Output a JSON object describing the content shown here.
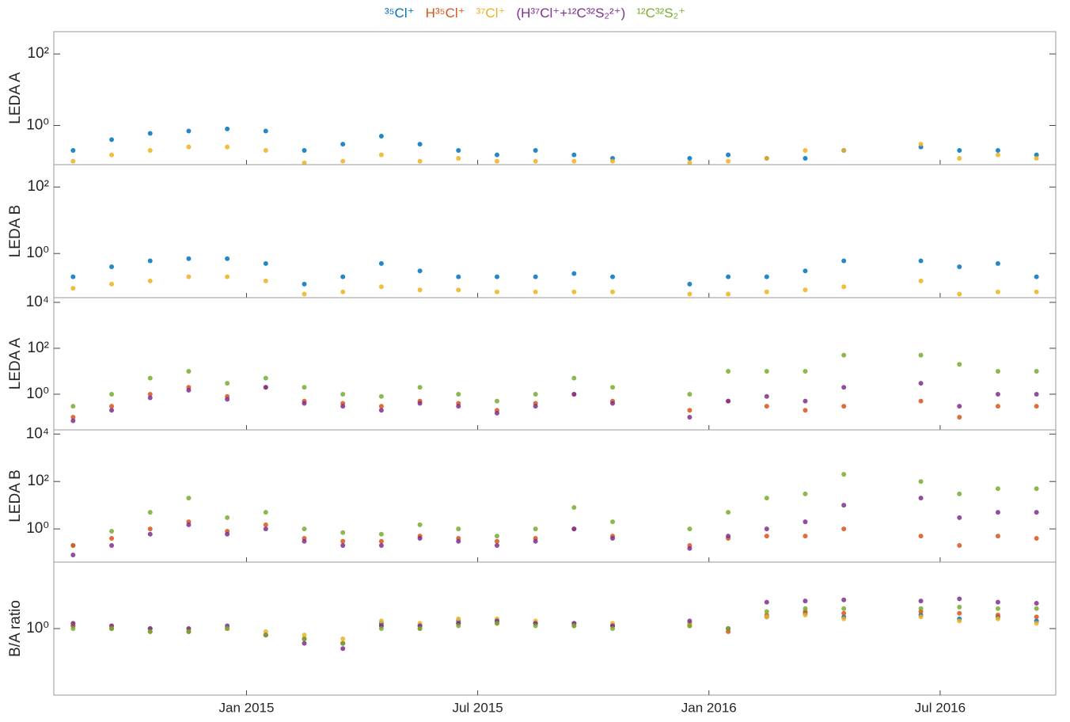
{
  "chart_data": [
    {
      "type": "scatter",
      "ylabel": "LEDA A",
      "log_y": true,
      "ylim": [
        0.08,
        420
      ],
      "xlim": [
        "2014-08",
        "2016-10"
      ],
      "yticks": [
        {
          "value": 1,
          "label": "10⁰"
        },
        {
          "value": 100,
          "label": "10²"
        }
      ],
      "x": [
        "2014-08",
        "2014-09",
        "2014-10",
        "2014-11",
        "2014-12",
        "2015-01",
        "2015-02",
        "2015-03",
        "2015-04",
        "2015-05",
        "2015-06",
        "2015-07",
        "2015-08",
        "2015-09",
        "2015-10",
        "2015-11",
        "2015-12",
        "2016-01",
        "2016-02",
        "2016-03",
        "2016-04",
        "2016-05",
        "2016-06",
        "2016-07",
        "2016-08",
        "2016-09"
      ],
      "series": [
        {
          "name": "³⁵Cl⁺",
          "color": "#0072bd",
          "values": [
            0.2,
            0.4,
            0.6,
            0.7,
            0.8,
            0.7,
            0.2,
            0.3,
            0.5,
            0.3,
            0.2,
            0.15,
            0.2,
            0.15,
            0.12,
            null,
            0.12,
            0.15,
            0.12,
            0.12,
            0.2,
            null,
            0.25,
            0.2,
            0.2,
            0.15
          ]
        },
        {
          "name": "³⁷Cl⁺",
          "color": "#edb120",
          "values": [
            0.1,
            0.15,
            0.2,
            0.25,
            0.25,
            0.2,
            0.09,
            0.1,
            0.15,
            0.1,
            0.12,
            0.1,
            0.1,
            0.1,
            0.1,
            null,
            0.09,
            0.1,
            0.12,
            0.2,
            0.2,
            null,
            0.3,
            0.12,
            0.15,
            0.12
          ]
        }
      ]
    },
    {
      "type": "scatter",
      "ylabel": "LEDA B",
      "log_y": true,
      "ylim": [
        0.047,
        470
      ],
      "xlim": [
        "2014-08",
        "2016-10"
      ],
      "yticks": [
        {
          "value": 1,
          "label": "10⁰"
        },
        {
          "value": 100,
          "label": "10²"
        }
      ],
      "x": [
        "2014-08",
        "2014-09",
        "2014-10",
        "2014-11",
        "2014-12",
        "2015-01",
        "2015-02",
        "2015-03",
        "2015-04",
        "2015-05",
        "2015-06",
        "2015-07",
        "2015-08",
        "2015-09",
        "2015-10",
        "2015-11",
        "2015-12",
        "2016-01",
        "2016-02",
        "2016-03",
        "2016-04",
        "2016-05",
        "2016-06",
        "2016-07",
        "2016-08",
        "2016-09"
      ],
      "series": [
        {
          "name": "³⁵Cl⁺",
          "color": "#0072bd",
          "values": [
            0.2,
            0.4,
            0.6,
            0.7,
            0.7,
            0.5,
            0.12,
            0.2,
            0.5,
            0.3,
            0.2,
            0.2,
            0.2,
            0.25,
            0.2,
            null,
            0.12,
            0.2,
            0.2,
            0.3,
            0.6,
            null,
            0.6,
            0.4,
            0.5,
            0.2
          ]
        },
        {
          "name": "³⁷Cl⁺",
          "color": "#edb120",
          "values": [
            0.09,
            0.12,
            0.15,
            0.2,
            0.2,
            0.15,
            0.06,
            0.07,
            0.1,
            0.08,
            0.08,
            0.07,
            0.07,
            0.07,
            0.07,
            null,
            0.06,
            0.06,
            0.07,
            0.08,
            0.1,
            null,
            0.15,
            0.06,
            0.07,
            0.07
          ]
        }
      ]
    },
    {
      "type": "scatter",
      "ylabel": "LEDA A",
      "log_y": true,
      "ylim": [
        0.028,
        16000
      ],
      "xlim": [
        "2014-08",
        "2016-10"
      ],
      "yticks": [
        {
          "value": 1,
          "label": "10⁰"
        },
        {
          "value": 100,
          "label": "10²"
        },
        {
          "value": 10000,
          "label": "10⁴"
        }
      ],
      "x": [
        "2014-08",
        "2014-09",
        "2014-10",
        "2014-11",
        "2014-12",
        "2015-01",
        "2015-02",
        "2015-03",
        "2015-04",
        "2015-05",
        "2015-06",
        "2015-07",
        "2015-08",
        "2015-09",
        "2015-10",
        "2015-11",
        "2015-12",
        "2016-01",
        "2016-02",
        "2016-03",
        "2016-04",
        "2016-05",
        "2016-06",
        "2016-07",
        "2016-08",
        "2016-09"
      ],
      "series": [
        {
          "name": "¹²C³²S₂⁺",
          "color": "#77ac30",
          "values": [
            0.3,
            1,
            5,
            10,
            3,
            5,
            2,
            1,
            0.8,
            2,
            1,
            0.5,
            1,
            5,
            2,
            null,
            1,
            10,
            10,
            10,
            50,
            null,
            50,
            20,
            10,
            10
          ]
        },
        {
          "name": "H³⁵Cl⁺",
          "color": "#d95319",
          "values": [
            0.1,
            0.3,
            1,
            2,
            0.8,
            2,
            0.5,
            0.4,
            0.3,
            0.5,
            0.4,
            0.2,
            0.4,
            1,
            0.5,
            null,
            0.2,
            0.5,
            0.3,
            0.2,
            0.3,
            null,
            0.5,
            0.1,
            0.3,
            0.3
          ]
        },
        {
          "name": "(H³⁷Cl⁺+¹²C³²S₂²⁺)",
          "color": "#7e2f8e",
          "values": [
            0.07,
            0.2,
            0.7,
            1.5,
            0.6,
            2,
            0.4,
            0.3,
            0.2,
            0.4,
            0.3,
            0.15,
            0.3,
            1,
            0.4,
            null,
            0.1,
            0.5,
            0.8,
            0.5,
            2,
            null,
            3,
            0.3,
            1,
            1
          ]
        }
      ]
    },
    {
      "type": "scatter",
      "ylabel": "LEDA B",
      "log_y": true,
      "ylim": [
        0.04,
        15000
      ],
      "xlim": [
        "2014-08",
        "2016-10"
      ],
      "yticks": [
        {
          "value": 1,
          "label": "10⁰"
        },
        {
          "value": 100,
          "label": "10²"
        },
        {
          "value": 10000,
          "label": "10⁴"
        }
      ],
      "x": [
        "2014-08",
        "2014-09",
        "2014-10",
        "2014-11",
        "2014-12",
        "2015-01",
        "2015-02",
        "2015-03",
        "2015-04",
        "2015-05",
        "2015-06",
        "2015-07",
        "2015-08",
        "2015-09",
        "2015-10",
        "2015-11",
        "2015-12",
        "2016-01",
        "2016-02",
        "2016-03",
        "2016-04",
        "2016-05",
        "2016-06",
        "2016-07",
        "2016-08",
        "2016-09"
      ],
      "series": [
        {
          "name": "¹²C³²S₂⁺",
          "color": "#77ac30",
          "values": [
            0.2,
            0.8,
            5,
            20,
            3,
            5,
            1,
            0.7,
            0.6,
            1.5,
            1,
            0.5,
            1,
            8,
            2,
            null,
            1,
            5,
            20,
            30,
            200,
            null,
            100,
            30,
            50,
            50
          ]
        },
        {
          "name": "H³⁵Cl⁺",
          "color": "#d95319",
          "values": [
            0.2,
            0.4,
            1,
            2,
            0.8,
            1.5,
            0.4,
            0.3,
            0.3,
            0.5,
            0.4,
            0.3,
            0.4,
            1,
            0.5,
            null,
            0.2,
            0.4,
            0.5,
            0.5,
            1,
            null,
            0.5,
            0.2,
            0.5,
            0.4
          ]
        },
        {
          "name": "(H³⁷Cl⁺+¹²C³²S₂²⁺)",
          "color": "#7e2f8e",
          "values": [
            0.08,
            0.2,
            0.6,
            1.5,
            0.6,
            1,
            0.3,
            0.2,
            0.2,
            0.4,
            0.3,
            0.2,
            0.3,
            1,
            0.4,
            null,
            0.15,
            0.5,
            1,
            2,
            10,
            null,
            20,
            3,
            5,
            5
          ]
        }
      ]
    },
    {
      "type": "scatter",
      "ylabel": "B/A ratio",
      "log_y": true,
      "ylim": [
        0.1,
        10
      ],
      "xlim": [
        "2014-08",
        "2016-10"
      ],
      "yticks": [
        {
          "value": 1,
          "label": "10⁰"
        }
      ],
      "xticks": [
        {
          "value": "2015-01",
          "label": "Jan 2015"
        },
        {
          "value": "2015-07",
          "label": "Jul 2015"
        },
        {
          "value": "2016-01",
          "label": "Jan 2016"
        },
        {
          "value": "2016-07",
          "label": "Jul 2016"
        }
      ],
      "x": [
        "2014-08",
        "2014-09",
        "2014-10",
        "2014-11",
        "2014-12",
        "2015-01",
        "2015-02",
        "2015-03",
        "2015-04",
        "2015-05",
        "2015-06",
        "2015-07",
        "2015-08",
        "2015-09",
        "2015-10",
        "2015-11",
        "2015-12",
        "2016-01",
        "2016-02",
        "2016-03",
        "2016-04",
        "2016-05",
        "2016-06",
        "2016-07",
        "2016-08",
        "2016-09"
      ],
      "series": [
        {
          "name": "³⁵Cl⁺",
          "color": "#0072bd",
          "values": [
            1.1,
            1,
            1,
            0.9,
            1,
            0.8,
            0.7,
            0.6,
            1.2,
            1.1,
            1.3,
            1.3,
            1.2,
            1.2,
            1.1,
            null,
            1.2,
            1,
            1.5,
            1.7,
            1.5,
            null,
            1.6,
            1.4,
            1.5,
            1.3
          ]
        },
        {
          "name": "H³⁵Cl⁺",
          "color": "#d95319",
          "values": [
            1.1,
            1,
            0.9,
            0.9,
            1,
            0.8,
            0.7,
            0.6,
            1.1,
            1,
            1.2,
            1.2,
            1.2,
            1.1,
            1.1,
            null,
            1.1,
            0.9,
            1.6,
            1.8,
            1.7,
            null,
            1.8,
            1.7,
            1.6,
            1.5
          ]
        },
        {
          "name": "³⁷Cl⁺",
          "color": "#edb120",
          "values": [
            1.2,
            1.1,
            1,
            1,
            1,
            0.9,
            0.8,
            0.7,
            1.3,
            1.2,
            1.4,
            1.4,
            1.3,
            1.2,
            1.2,
            null,
            1.2,
            1,
            1.5,
            1.6,
            1.4,
            null,
            1.5,
            1.3,
            1.4,
            1.2
          ]
        },
        {
          "name": "(H³⁷Cl⁺+¹²C³²S₂²⁺)",
          "color": "#7e2f8e",
          "values": [
            1.2,
            1.1,
            1,
            1,
            1.1,
            0.8,
            0.6,
            0.5,
            1.1,
            1.1,
            1.2,
            1.3,
            1.2,
            1.2,
            1.1,
            null,
            1.3,
            1,
            2.5,
            2.6,
            2.7,
            null,
            2.6,
            2.8,
            2.5,
            2.4
          ]
        },
        {
          "name": "¹²C³²S₂⁺",
          "color": "#77ac30",
          "values": [
            1,
            1,
            0.9,
            0.9,
            1,
            0.8,
            0.7,
            0.6,
            1,
            1,
            1.1,
            1.2,
            1.1,
            1.1,
            1,
            null,
            1.1,
            1,
            1.8,
            2,
            2,
            null,
            2,
            2.1,
            2,
            2
          ]
        }
      ]
    }
  ]
}
